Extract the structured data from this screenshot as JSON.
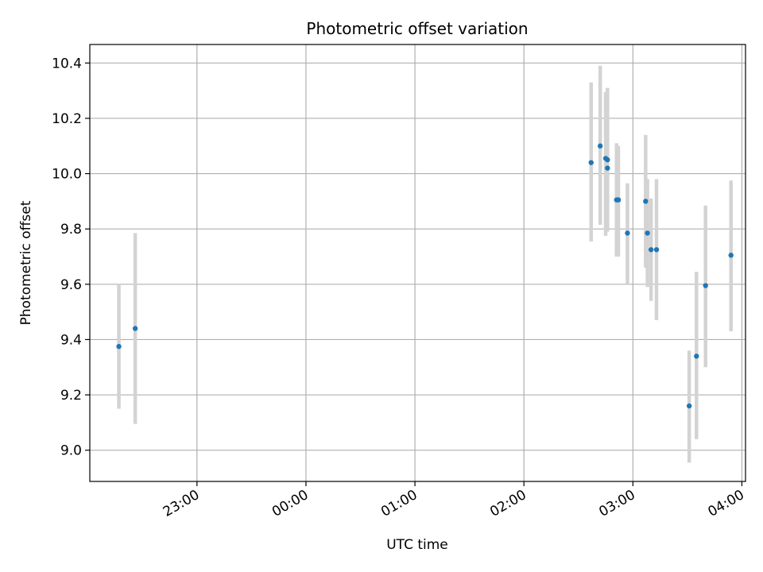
{
  "chart_data": {
    "type": "scatter",
    "title": "Photometric offset variation",
    "xlabel": "UTC time",
    "ylabel": "Photometric offset",
    "x_format": "time (HH:MM, UTC)",
    "x_ticks": [
      "23:00",
      "00:00",
      "01:00",
      "02:00",
      "03:00",
      "04:00"
    ],
    "xlim": [
      "22:01",
      "04:02"
    ],
    "y_ticks": [
      "9.0",
      "9.2",
      "9.4",
      "9.6",
      "9.8",
      "10.0",
      "10.2",
      "10.4"
    ],
    "ylim": [
      8.887,
      10.467
    ],
    "grid": true,
    "legend": "none",
    "marker_color": "#1f77b4",
    "errorbar_color": "#d3d3d3",
    "points": [
      {
        "x": "22:17",
        "y": 9.375,
        "yerr_low": 9.15,
        "yerr_high": 9.6
      },
      {
        "x": "22:26",
        "y": 9.44,
        "yerr_low": 9.095,
        "yerr_high": 9.785
      },
      {
        "x": "02:37",
        "y": 10.04,
        "yerr_low": 9.755,
        "yerr_high": 10.33
      },
      {
        "x": "02:42",
        "y": 10.1,
        "yerr_low": 9.815,
        "yerr_high": 10.39
      },
      {
        "x": "02:45",
        "y": 10.055,
        "yerr_low": 9.775,
        "yerr_high": 10.295
      },
      {
        "x": "02:46",
        "y": 10.05,
        "yerr_low": 9.79,
        "yerr_high": 10.31
      },
      {
        "x": "02:46",
        "y": 10.02,
        "yerr_low": 9.8,
        "yerr_high": 10.3
      },
      {
        "x": "02:51",
        "y": 9.905,
        "yerr_low": 9.7,
        "yerr_high": 10.11
      },
      {
        "x": "02:52",
        "y": 9.905,
        "yerr_low": 9.7,
        "yerr_high": 10.1
      },
      {
        "x": "02:57",
        "y": 9.785,
        "yerr_low": 9.6,
        "yerr_high": 9.965
      },
      {
        "x": "03:07",
        "y": 9.9,
        "yerr_low": 9.66,
        "yerr_high": 10.14
      },
      {
        "x": "03:08",
        "y": 9.785,
        "yerr_low": 9.59,
        "yerr_high": 9.98
      },
      {
        "x": "03:10",
        "y": 9.725,
        "yerr_low": 9.54,
        "yerr_high": 9.91
      },
      {
        "x": "03:13",
        "y": 9.725,
        "yerr_low": 9.47,
        "yerr_high": 9.98
      },
      {
        "x": "03:31",
        "y": 9.16,
        "yerr_low": 8.955,
        "yerr_high": 9.36
      },
      {
        "x": "03:35",
        "y": 9.34,
        "yerr_low": 9.04,
        "yerr_high": 9.645
      },
      {
        "x": "03:40",
        "y": 9.595,
        "yerr_low": 9.3,
        "yerr_high": 9.885
      },
      {
        "x": "03:54",
        "y": 9.705,
        "yerr_low": 9.43,
        "yerr_high": 9.975
      }
    ]
  }
}
